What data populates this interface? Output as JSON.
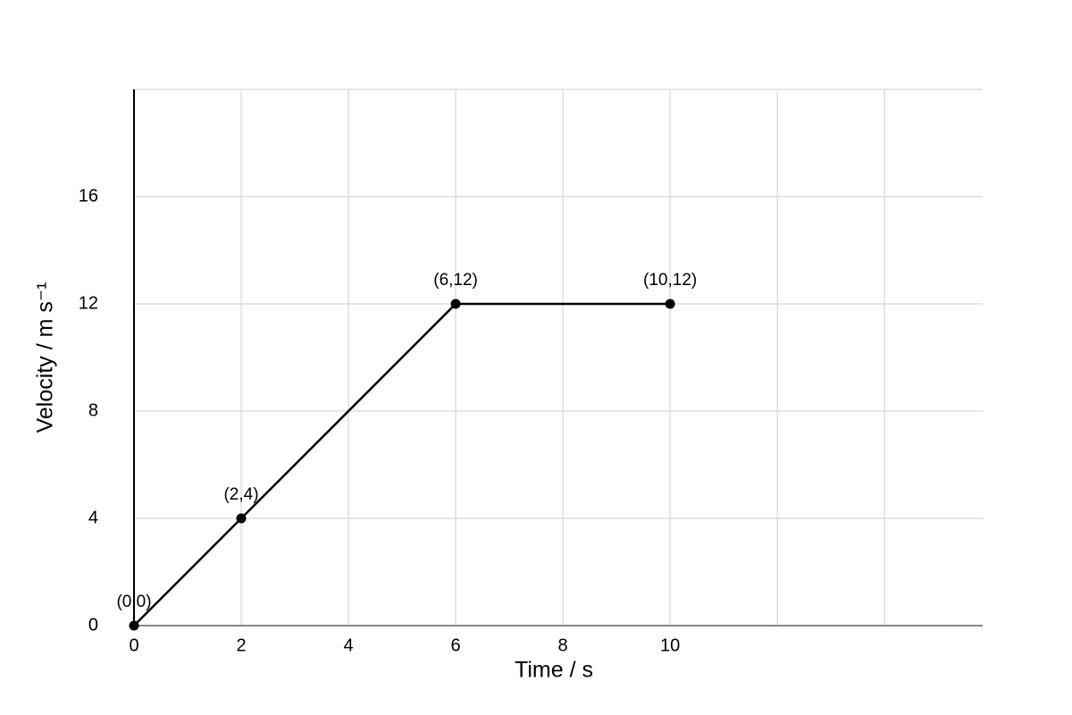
{
  "chart_data": {
    "type": "line",
    "x_label": "Time / s",
    "y_label": "Velocity / m s⁻¹",
    "x": [
      0,
      2,
      6,
      10
    ],
    "series": [
      {
        "color": "#000000",
        "values": [
          0,
          4,
          12,
          12
        ],
        "value_labels": [
          "(0,0)",
          "(2,4)",
          "(6,12)",
          "(10,12)"
        ]
      }
    ],
    "xlim": [
      0,
      15.83
    ],
    "ylim": [
      0,
      20
    ],
    "xticks": [
      0,
      2,
      4,
      6,
      8,
      10
    ],
    "xgrid": [
      0,
      2,
      4,
      6,
      8,
      10,
      12,
      14
    ],
    "yticks": [
      0,
      4,
      8,
      12,
      16
    ],
    "grid": true
  }
}
